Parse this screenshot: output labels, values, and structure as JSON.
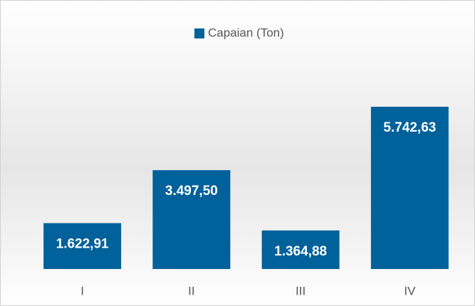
{
  "chart_data": {
    "type": "bar",
    "categories": [
      "I",
      "II",
      "III",
      "IV"
    ],
    "series": [
      {
        "name": "Capaian (Ton)",
        "color": "#01619a",
        "values": [
          1622.91,
          3497.5,
          1364.88,
          5742.63
        ],
        "value_labels": [
          "1.622,91",
          "3.497,50",
          "1.364,88",
          "5.742,63"
        ]
      }
    ],
    "legend": "top"
  }
}
